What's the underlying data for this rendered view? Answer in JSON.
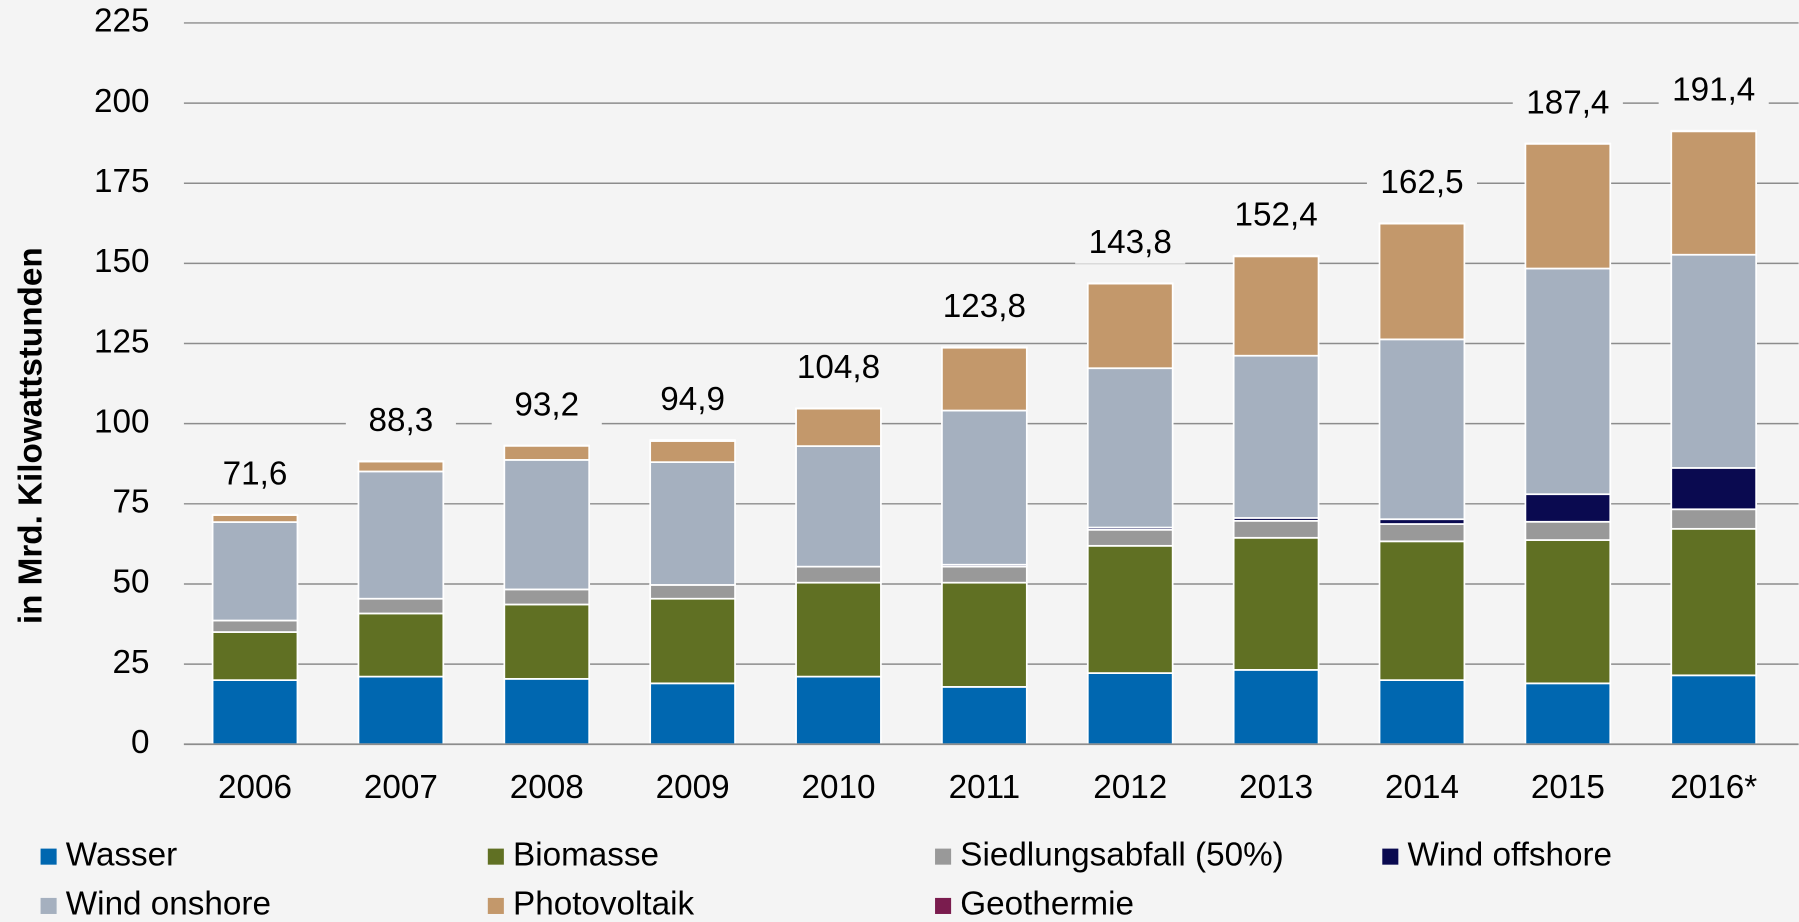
{
  "chart_data": {
    "type": "stacked_bar",
    "y_label": "in Mrd. Kilowattstunden",
    "categories": [
      "2006",
      "2007",
      "2008",
      "2009",
      "2010",
      "2011",
      "2012",
      "2013",
      "2014",
      "2015",
      "2016*"
    ],
    "series": [
      {
        "name": "Wasser",
        "color": "#0067b0",
        "values": [
          20.0,
          21.1,
          20.4,
          19.0,
          21.1,
          17.9,
          22.2,
          23.2,
          20.0,
          19.0,
          21.5
        ]
      },
      {
        "name": "Biomasse",
        "color": "#607023",
        "values": [
          15.0,
          19.7,
          23.2,
          26.4,
          29.3,
          32.5,
          39.7,
          41.2,
          43.3,
          44.7,
          45.7
        ]
      },
      {
        "name": "Siedlungsabfall (50%)",
        "color": "#999999",
        "values": [
          3.6,
          4.6,
          4.7,
          4.3,
          5.0,
          5.0,
          5.0,
          5.3,
          5.4,
          5.7,
          6.1
        ]
      },
      {
        "name": "Wind offshore",
        "color": "#0a0a50",
        "values": [
          0,
          0,
          0,
          0,
          0,
          0.6,
          0.7,
          0.9,
          1.5,
          8.6,
          12.9
        ]
      },
      {
        "name": "Wind onshore",
        "color": "#a5b0bf",
        "values": [
          30.7,
          39.7,
          40.4,
          38.3,
          37.6,
          48.1,
          49.7,
          50.6,
          56.1,
          70.4,
          66.5
        ]
      },
      {
        "name": "Photovoltaik",
        "color": "#c3986b",
        "values": [
          2.2,
          3.1,
          4.4,
          6.6,
          11.7,
          19.6,
          26.4,
          31.0,
          36.1,
          38.9,
          38.5
        ]
      },
      {
        "name": "Geothermie",
        "color": "#7a1c4e",
        "values": [
          0.1,
          0.1,
          0.1,
          0.3,
          0.1,
          0.1,
          0.1,
          0.2,
          0.1,
          0.1,
          0.2
        ]
      }
    ],
    "totals": [
      71.6,
      88.3,
      93.2,
      94.9,
      104.8,
      123.8,
      143.8,
      152.4,
      162.5,
      187.4,
      191.4
    ],
    "total_labels": [
      "71,6",
      "88,3",
      "93,2",
      "94,9",
      "104,8",
      "123,8",
      "143,8",
      "152,4",
      "162,5",
      "187,4",
      "191,4"
    ],
    "ylim": [
      0,
      225
    ],
    "yticks": [
      0,
      25,
      50,
      75,
      100,
      125,
      150,
      175,
      200,
      225
    ],
    "grid": true,
    "legend": "bottom"
  }
}
